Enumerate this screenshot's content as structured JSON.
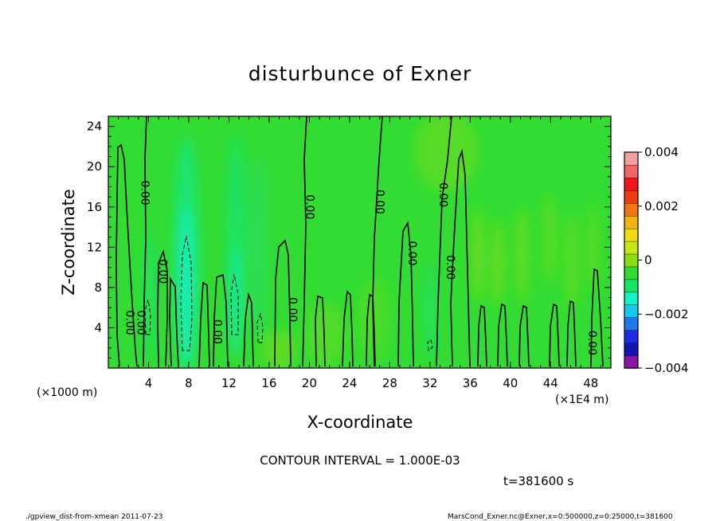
{
  "chart_data": {
    "type": "heatmap",
    "title": "disturbunce of Exner",
    "xlabel": "X-coordinate",
    "ylabel": "Z-coordinate",
    "x_unit": "(×1E4 m)",
    "y_unit": "(×1000 m)",
    "xlim": [
      0,
      50
    ],
    "ylim": [
      0,
      25
    ],
    "x_ticks": [
      4,
      8,
      12,
      16,
      20,
      24,
      28,
      32,
      36,
      40,
      44,
      48
    ],
    "y_ticks": [
      4,
      8,
      12,
      16,
      20,
      24
    ],
    "colorbar": {
      "ticks": [
        0.004,
        0.002,
        0,
        -0.002,
        -0.004
      ],
      "tick_labels": [
        "0.004",
        "0.002",
        "0",
        "−0.002",
        "−0.004"
      ],
      "range": [
        -0.004,
        0.004
      ],
      "colors": [
        "#8a14a6",
        "#1414b4",
        "#1e28e6",
        "#1e78f0",
        "#14c8f0",
        "#14f0c8",
        "#14e664",
        "#32dc32",
        "#8cdc14",
        "#c8e614",
        "#f0dc14",
        "#f0b414",
        "#f07814",
        "#f03c14",
        "#f0141e",
        "#f06464",
        "#f0a0a0"
      ]
    },
    "zero_contour_labels": [
      {
        "x": 2.1,
        "y": 4.5,
        "text": "0.00"
      },
      {
        "x": 3.2,
        "y": 4.5,
        "text": "0.00"
      },
      {
        "x": 3.6,
        "y": 17.4,
        "text": "0.00"
      },
      {
        "x": 5.4,
        "y": 9.6,
        "text": "0.00"
      },
      {
        "x": 10.8,
        "y": 3.6,
        "text": "0.00"
      },
      {
        "x": 18.3,
        "y": 5.8,
        "text": "0.00"
      },
      {
        "x": 20.0,
        "y": 16.0,
        "text": "0.00"
      },
      {
        "x": 27.0,
        "y": 16.5,
        "text": "0.00"
      },
      {
        "x": 30.2,
        "y": 11.4,
        "text": "0.00"
      },
      {
        "x": 33.3,
        "y": 17.2,
        "text": "0.00"
      },
      {
        "x": 34.0,
        "y": 10.0,
        "text": "0.00"
      },
      {
        "x": 48.1,
        "y": 2.5,
        "text": "0.00"
      }
    ]
  },
  "contour_interval": "CONTOUR INTERVAL = 1.000E-03",
  "time_label": "t=381600 s",
  "footer_left": "./gpview_dist-from-xmean  2011-07-23",
  "footer_right": "MarsCond_Exner.nc@Exner,x=0:500000,z=0:25000,t=381600"
}
